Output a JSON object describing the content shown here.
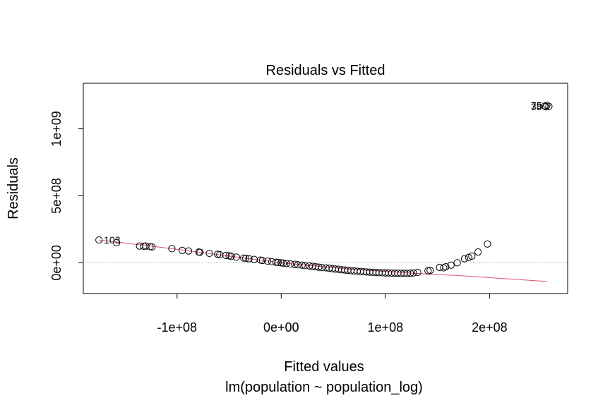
{
  "chart_data": {
    "type": "scatter",
    "title": "Residuals vs Fitted",
    "xlabel": "Fitted values",
    "subtitle": "lm(population ~ population_log)",
    "ylabel": "Residuals",
    "xlim": [
      -190000000,
      275000000
    ],
    "ylim": [
      -230000000,
      1340000000
    ],
    "x_ticks": [
      -100000000,
      0,
      100000000,
      200000000
    ],
    "x_tick_labels": [
      "-1e+08",
      "0e+00",
      "1e+08",
      "2e+08"
    ],
    "y_ticks": [
      0,
      500000000,
      1000000000
    ],
    "y_tick_labels": [
      "0e+00",
      "5e+08",
      "1e+09"
    ],
    "reference_line": {
      "y": 0,
      "style": "dotted",
      "color": "#aaaaaa"
    },
    "smooth_line": {
      "color": "#df536b",
      "x": [
        -175000000,
        -120000000,
        -60000000,
        0,
        60000000,
        120000000,
        180000000,
        255000000
      ],
      "y": [
        170000000,
        120000000,
        60000000,
        0,
        -45000000,
        -75000000,
        -100000000,
        -140000000
      ]
    },
    "point_labels": [
      {
        "text": "103",
        "x": -175000000,
        "y": 170000000,
        "side": "right"
      },
      {
        "text": "75",
        "x": 255000000,
        "y": 1175000000,
        "side": "left"
      },
      {
        "text": "38",
        "x": 255000000,
        "y": 1165000000,
        "side": "left"
      }
    ],
    "points": {
      "x": [
        -175000000,
        -158000000,
        -136000000,
        -132000000,
        -130000000,
        -126000000,
        -124000000,
        -105000000,
        -95000000,
        -89000000,
        -79000000,
        -78000000,
        -69000000,
        -61000000,
        -59000000,
        -53000000,
        -50000000,
        -48000000,
        -43000000,
        -36000000,
        -34000000,
        -31000000,
        -26000000,
        -20000000,
        -18000000,
        -13000000,
        -9000000,
        -5000000,
        -3000000,
        0,
        2000000,
        5000000,
        9000000,
        13000000,
        16000000,
        20000000,
        23000000,
        27000000,
        30000000,
        33000000,
        36000000,
        39000000,
        43000000,
        46000000,
        49000000,
        52000000,
        55000000,
        58000000,
        61000000,
        64000000,
        67000000,
        70000000,
        73000000,
        76000000,
        79000000,
        82000000,
        85000000,
        88000000,
        91000000,
        94000000,
        97000000,
        100000000,
        103000000,
        106000000,
        109000000,
        112000000,
        115000000,
        118000000,
        121000000,
        124000000,
        127000000,
        131000000,
        141000000,
        143000000,
        152000000,
        156000000,
        158000000,
        163000000,
        169000000,
        176000000,
        180000000,
        183000000,
        189000000,
        198000000,
        253000000,
        254000000,
        255000000,
        257000000
      ],
      "y": [
        170000000,
        150000000,
        125000000,
        123000000,
        125000000,
        120000000,
        118000000,
        105000000,
        92000000,
        88000000,
        80000000,
        78000000,
        70000000,
        63000000,
        60000000,
        55000000,
        52000000,
        48000000,
        42000000,
        35000000,
        33000000,
        30000000,
        25000000,
        20000000,
        17000000,
        12000000,
        8000000,
        4000000,
        2000000,
        0,
        -3000000,
        -5000000,
        -9000000,
        -12000000,
        -15000000,
        -18000000,
        -21000000,
        -24000000,
        -27000000,
        -30000000,
        -33000000,
        -36000000,
        -38000000,
        -41000000,
        -44000000,
        -47000000,
        -49000000,
        -52000000,
        -54000000,
        -57000000,
        -59000000,
        -61000000,
        -63000000,
        -65000000,
        -67000000,
        -69000000,
        -70000000,
        -71000000,
        -73000000,
        -74000000,
        -75000000,
        -76000000,
        -76000000,
        -77000000,
        -78000000,
        -78000000,
        -79000000,
        -79000000,
        -79000000,
        -78000000,
        -76000000,
        -72000000,
        -60000000,
        -57000000,
        -35000000,
        -38000000,
        -30000000,
        -18000000,
        0,
        30000000,
        40000000,
        50000000,
        80000000,
        140000000,
        1170000000,
        1165000000,
        1175000000,
        1168000000
      ]
    }
  }
}
